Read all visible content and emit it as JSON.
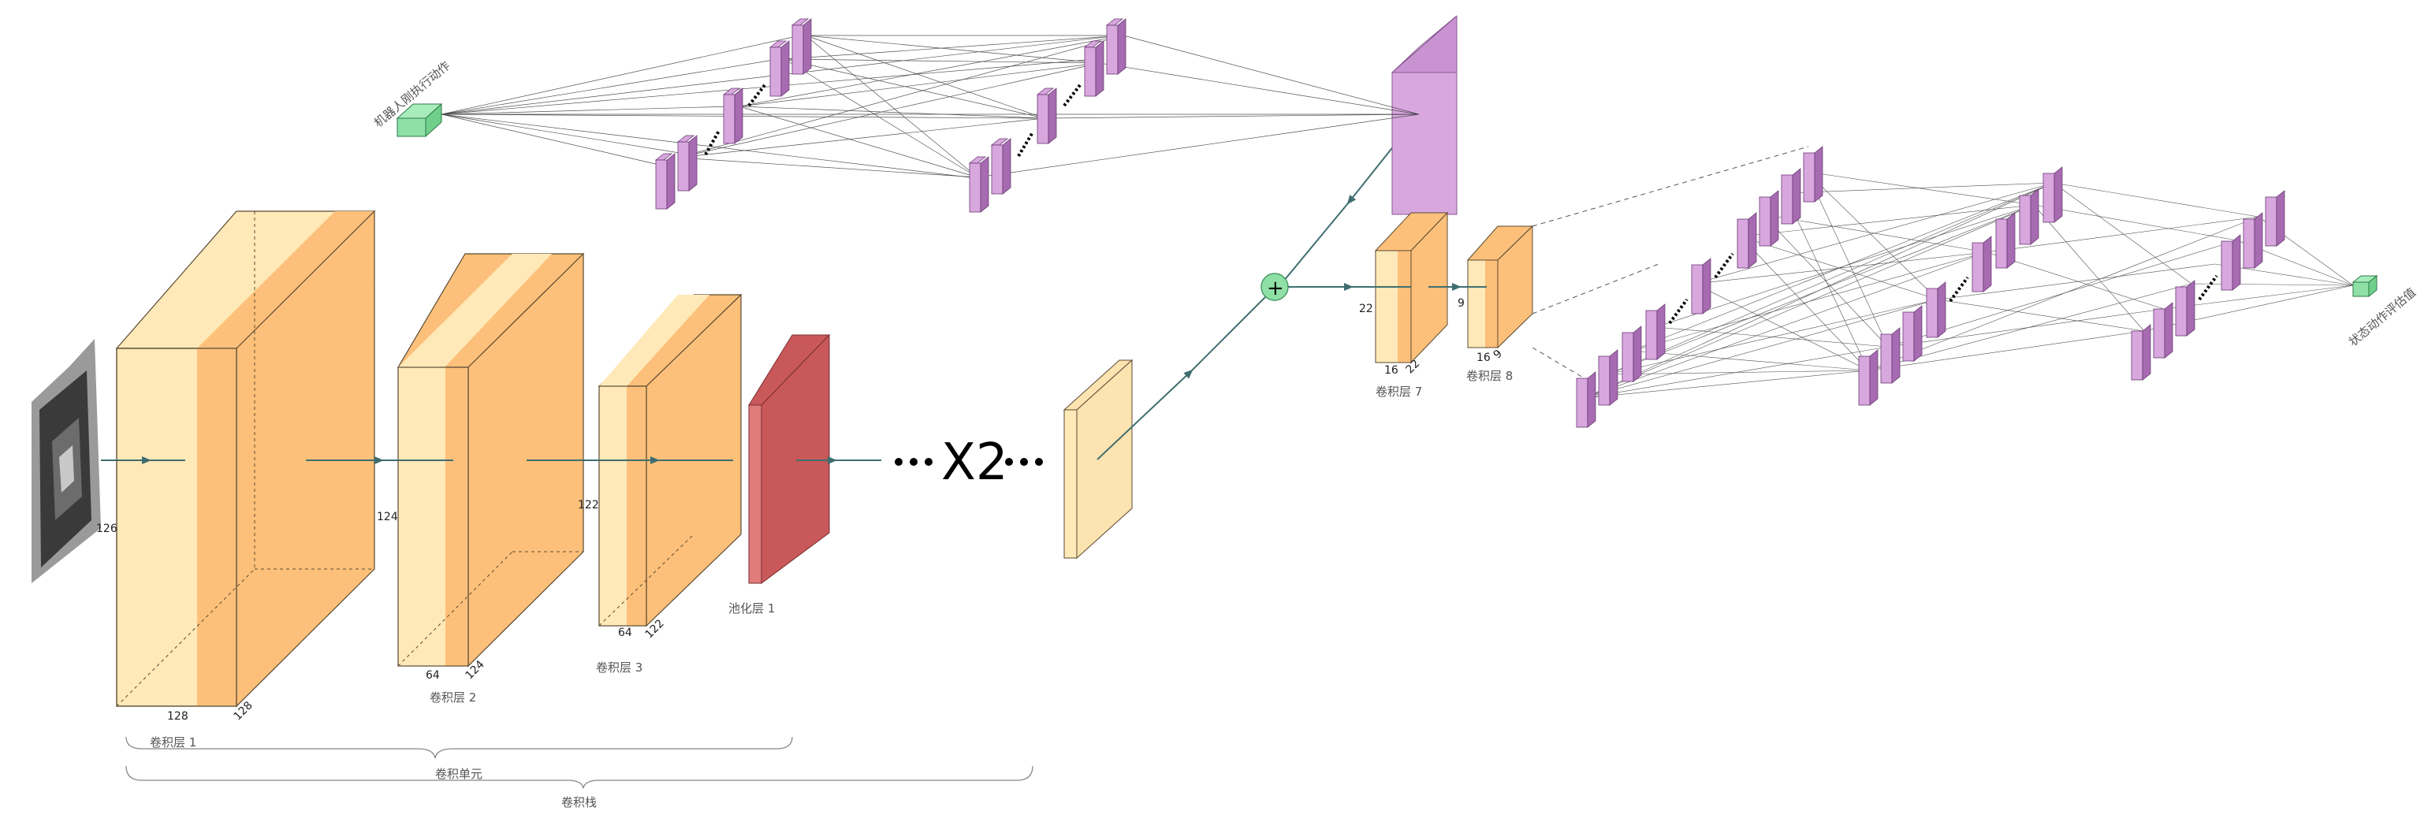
{
  "colors": {
    "conv_front": "#FFE9B8",
    "conv_side": "#FDC07A",
    "conv_edge": "#5A4A32",
    "pool": "#E07B7B",
    "pool_side": "#C9585A",
    "fc": "#D8A7DE",
    "fc_dark": "#A66BB0",
    "node": "#8EE0A6",
    "arrow": "#3F6E70"
  },
  "layers": {
    "conv1": {
      "caption": "卷积层 1",
      "height": "126",
      "width": "128",
      "depth": "128"
    },
    "conv2": {
      "caption": "卷积层 2",
      "height": "124",
      "width": "64",
      "depth": "124"
    },
    "conv3": {
      "caption": "卷积层 3",
      "height": "122",
      "width": "64",
      "depth": "122"
    },
    "pool1": {
      "caption": "池化层 1"
    },
    "conv7": {
      "caption": "卷积层 7",
      "height": "22",
      "width": "16",
      "depth": "22"
    },
    "conv8": {
      "caption": "卷积层 8",
      "height": "9",
      "width": "16",
      "depth": "9"
    }
  },
  "repeat_label": "X2",
  "brace_labels": {
    "unit": "卷积单元",
    "stack": "卷积栈"
  },
  "inputs": {
    "robot_action": "机器人刚执行动作",
    "state_action_value": "状态动作评估值"
  },
  "sum_symbol": "+",
  "icons": [
    "sum-icon",
    "arrow-icon",
    "ellipsis-icon"
  ]
}
